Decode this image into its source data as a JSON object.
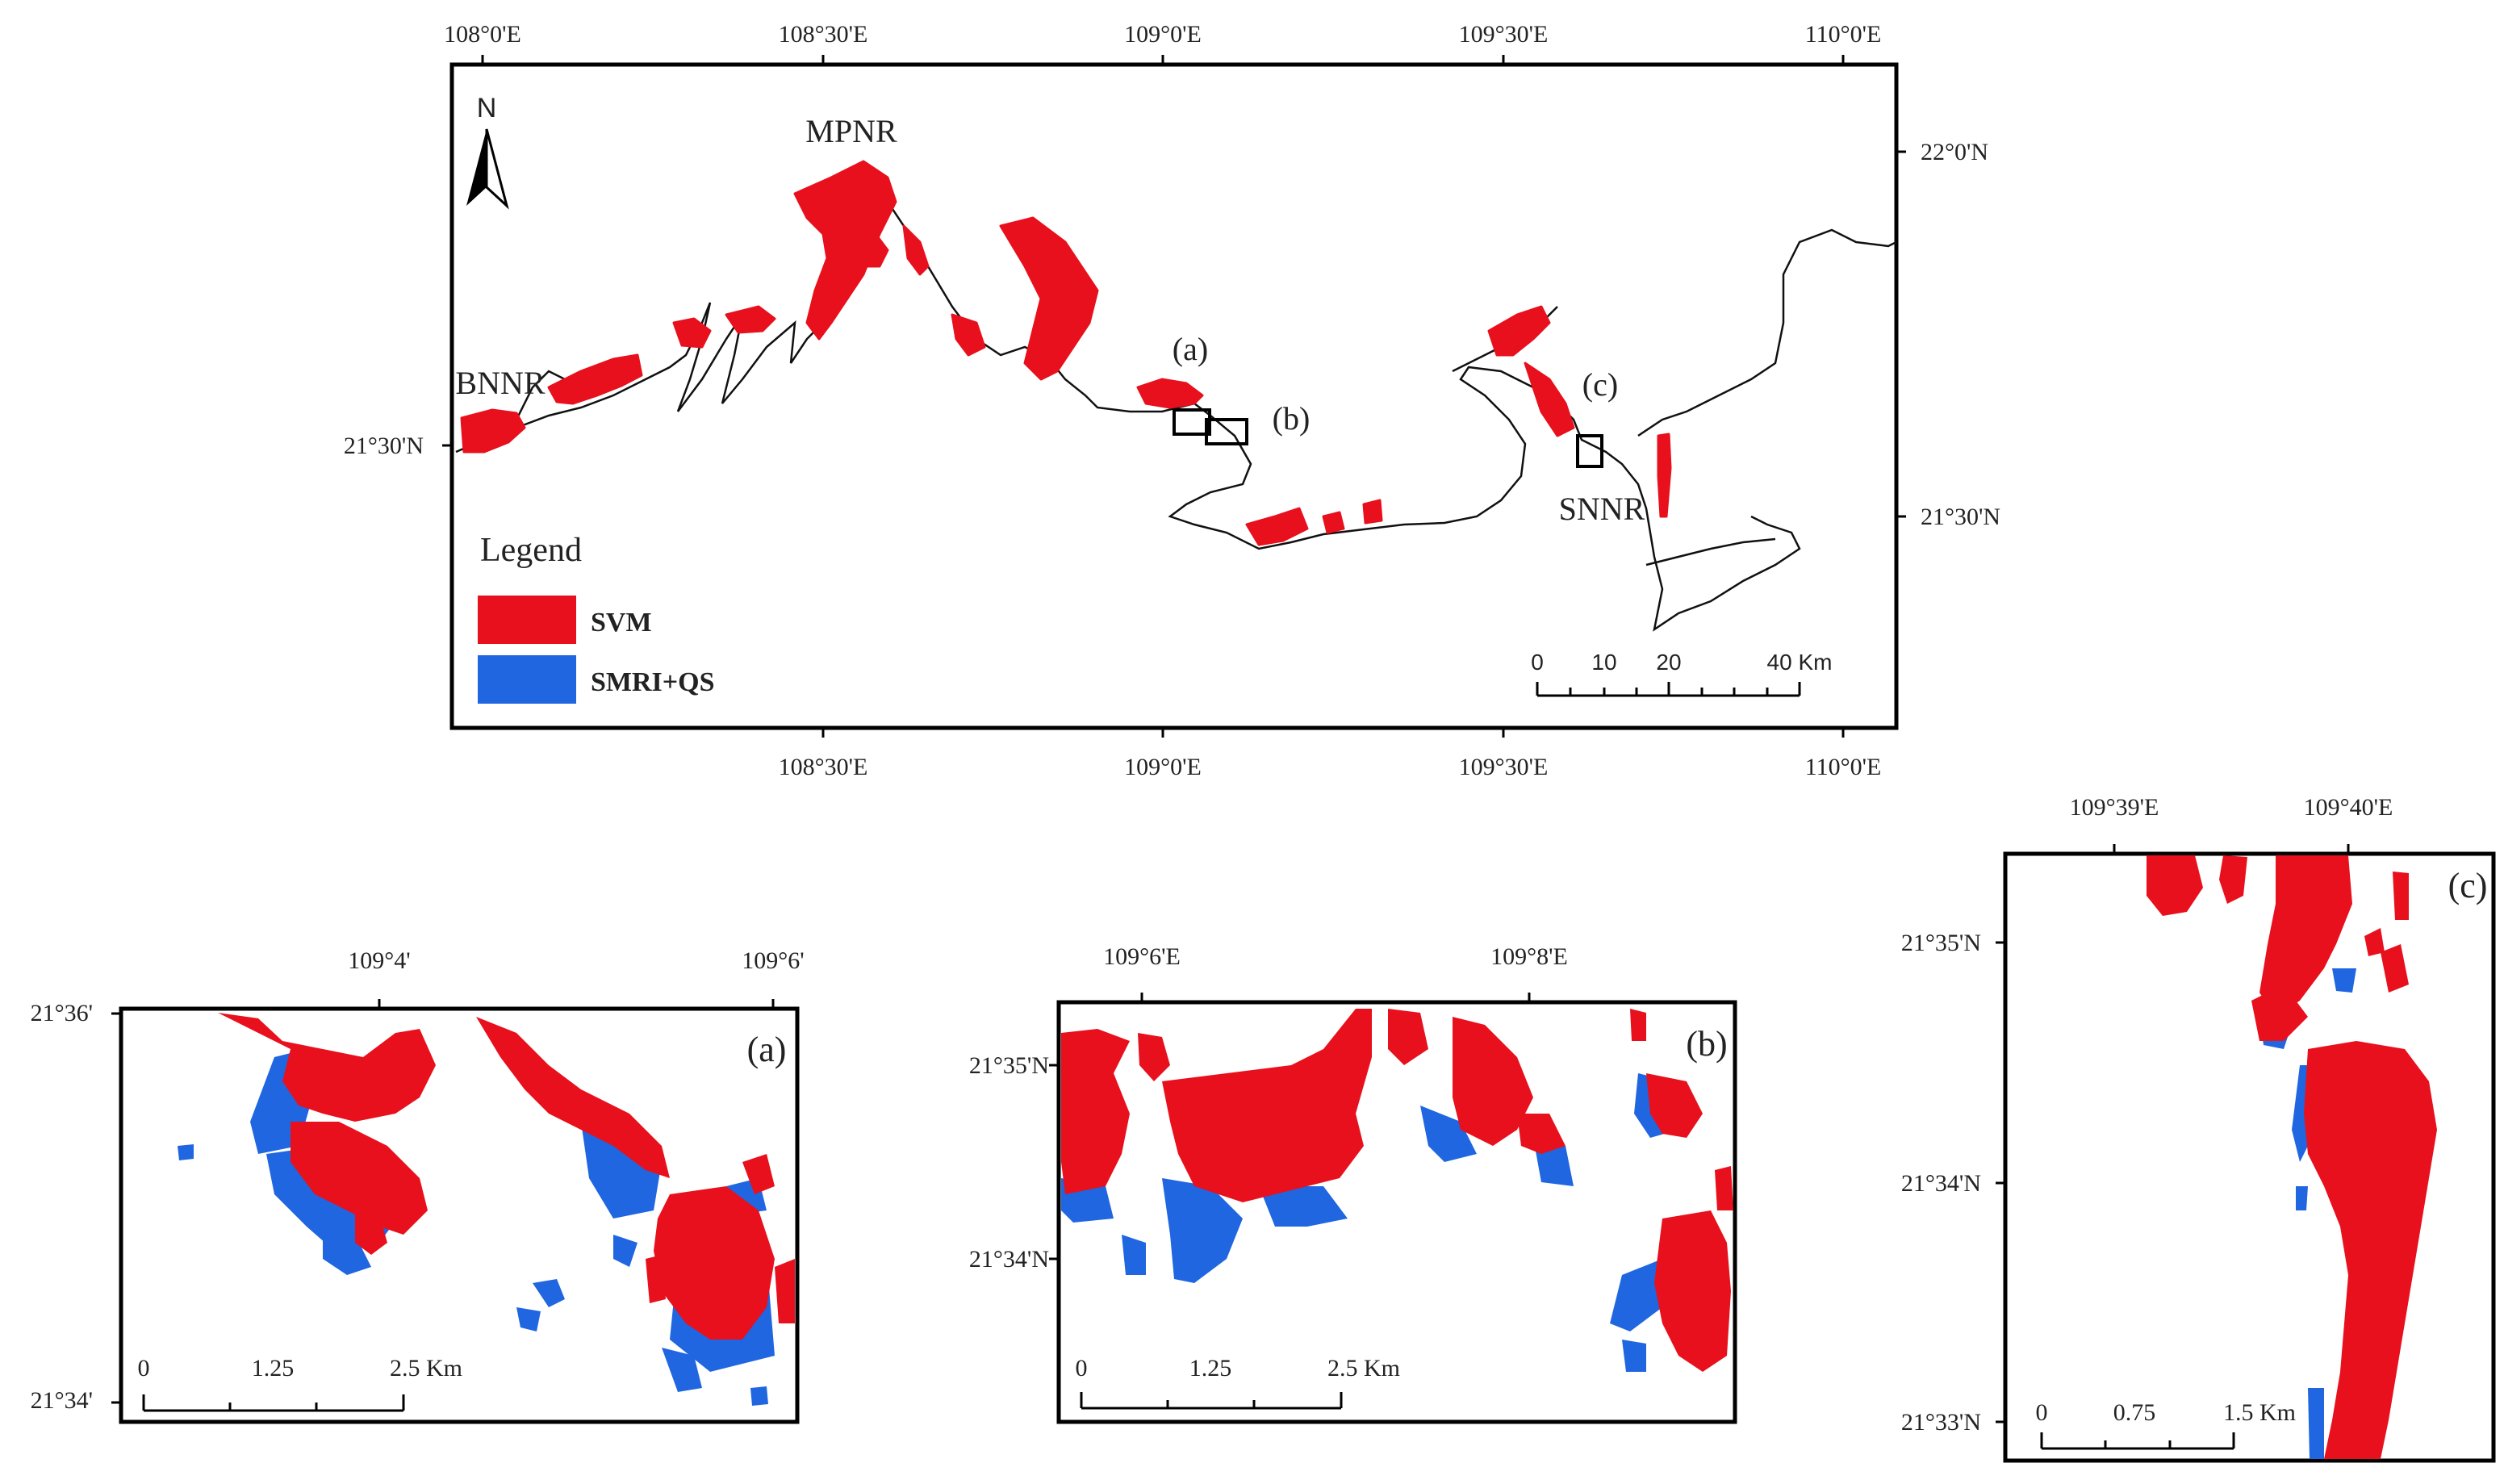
{
  "colors": {
    "svm": "#e8101c",
    "smri_qs": "#1f66e0",
    "frame": "#000000"
  },
  "main_map": {
    "top_lon_labels": [
      "108°0'E",
      "108°30'E",
      "109°0'E",
      "109°30'E",
      "110°0'E"
    ],
    "bottom_lon_labels": [
      "108°30'E",
      "109°0'E",
      "109°30'E",
      "110°0'E"
    ],
    "left_lat_labels": [
      "21°30'N"
    ],
    "right_lat_labels": [
      "22°0'N",
      "21°30'N"
    ],
    "north_arrow": "N",
    "place_names": {
      "mpnr": "MPNR",
      "bnnr": "BNNR",
      "snnr": "SNNR"
    },
    "inset_markers": {
      "a": "(a)",
      "b": "(b)",
      "c": "(c)"
    },
    "legend": {
      "title": "Legend",
      "items": [
        {
          "label": "SVM",
          "color": "#e8101c"
        },
        {
          "label": "SMRI+QS",
          "color": "#1f66e0"
        }
      ]
    },
    "scale_bar": {
      "labels": [
        "0",
        "10",
        "20",
        "40 Km"
      ]
    }
  },
  "inset_a": {
    "tag": "(a)",
    "lon_labels": [
      "109°4'",
      "109°6'"
    ],
    "lat_labels": [
      "21°36'",
      "21°34'"
    ],
    "scale_labels": [
      "0",
      "1.25",
      "2.5 Km"
    ]
  },
  "inset_b": {
    "tag": "(b)",
    "lon_labels": [
      "109°6'E",
      "109°8'E"
    ],
    "lat_labels": [
      "21°35'N",
      "21°34'N"
    ],
    "scale_labels": [
      "0",
      "1.25",
      "2.5 Km"
    ]
  },
  "inset_c": {
    "tag": "(c)",
    "lon_labels": [
      "109°39'E",
      "109°40'E"
    ],
    "lat_labels": [
      "21°35'N",
      "21°34'N",
      "21°33'N"
    ],
    "scale_labels": [
      "0",
      "0.75",
      "1.5 Km"
    ]
  }
}
